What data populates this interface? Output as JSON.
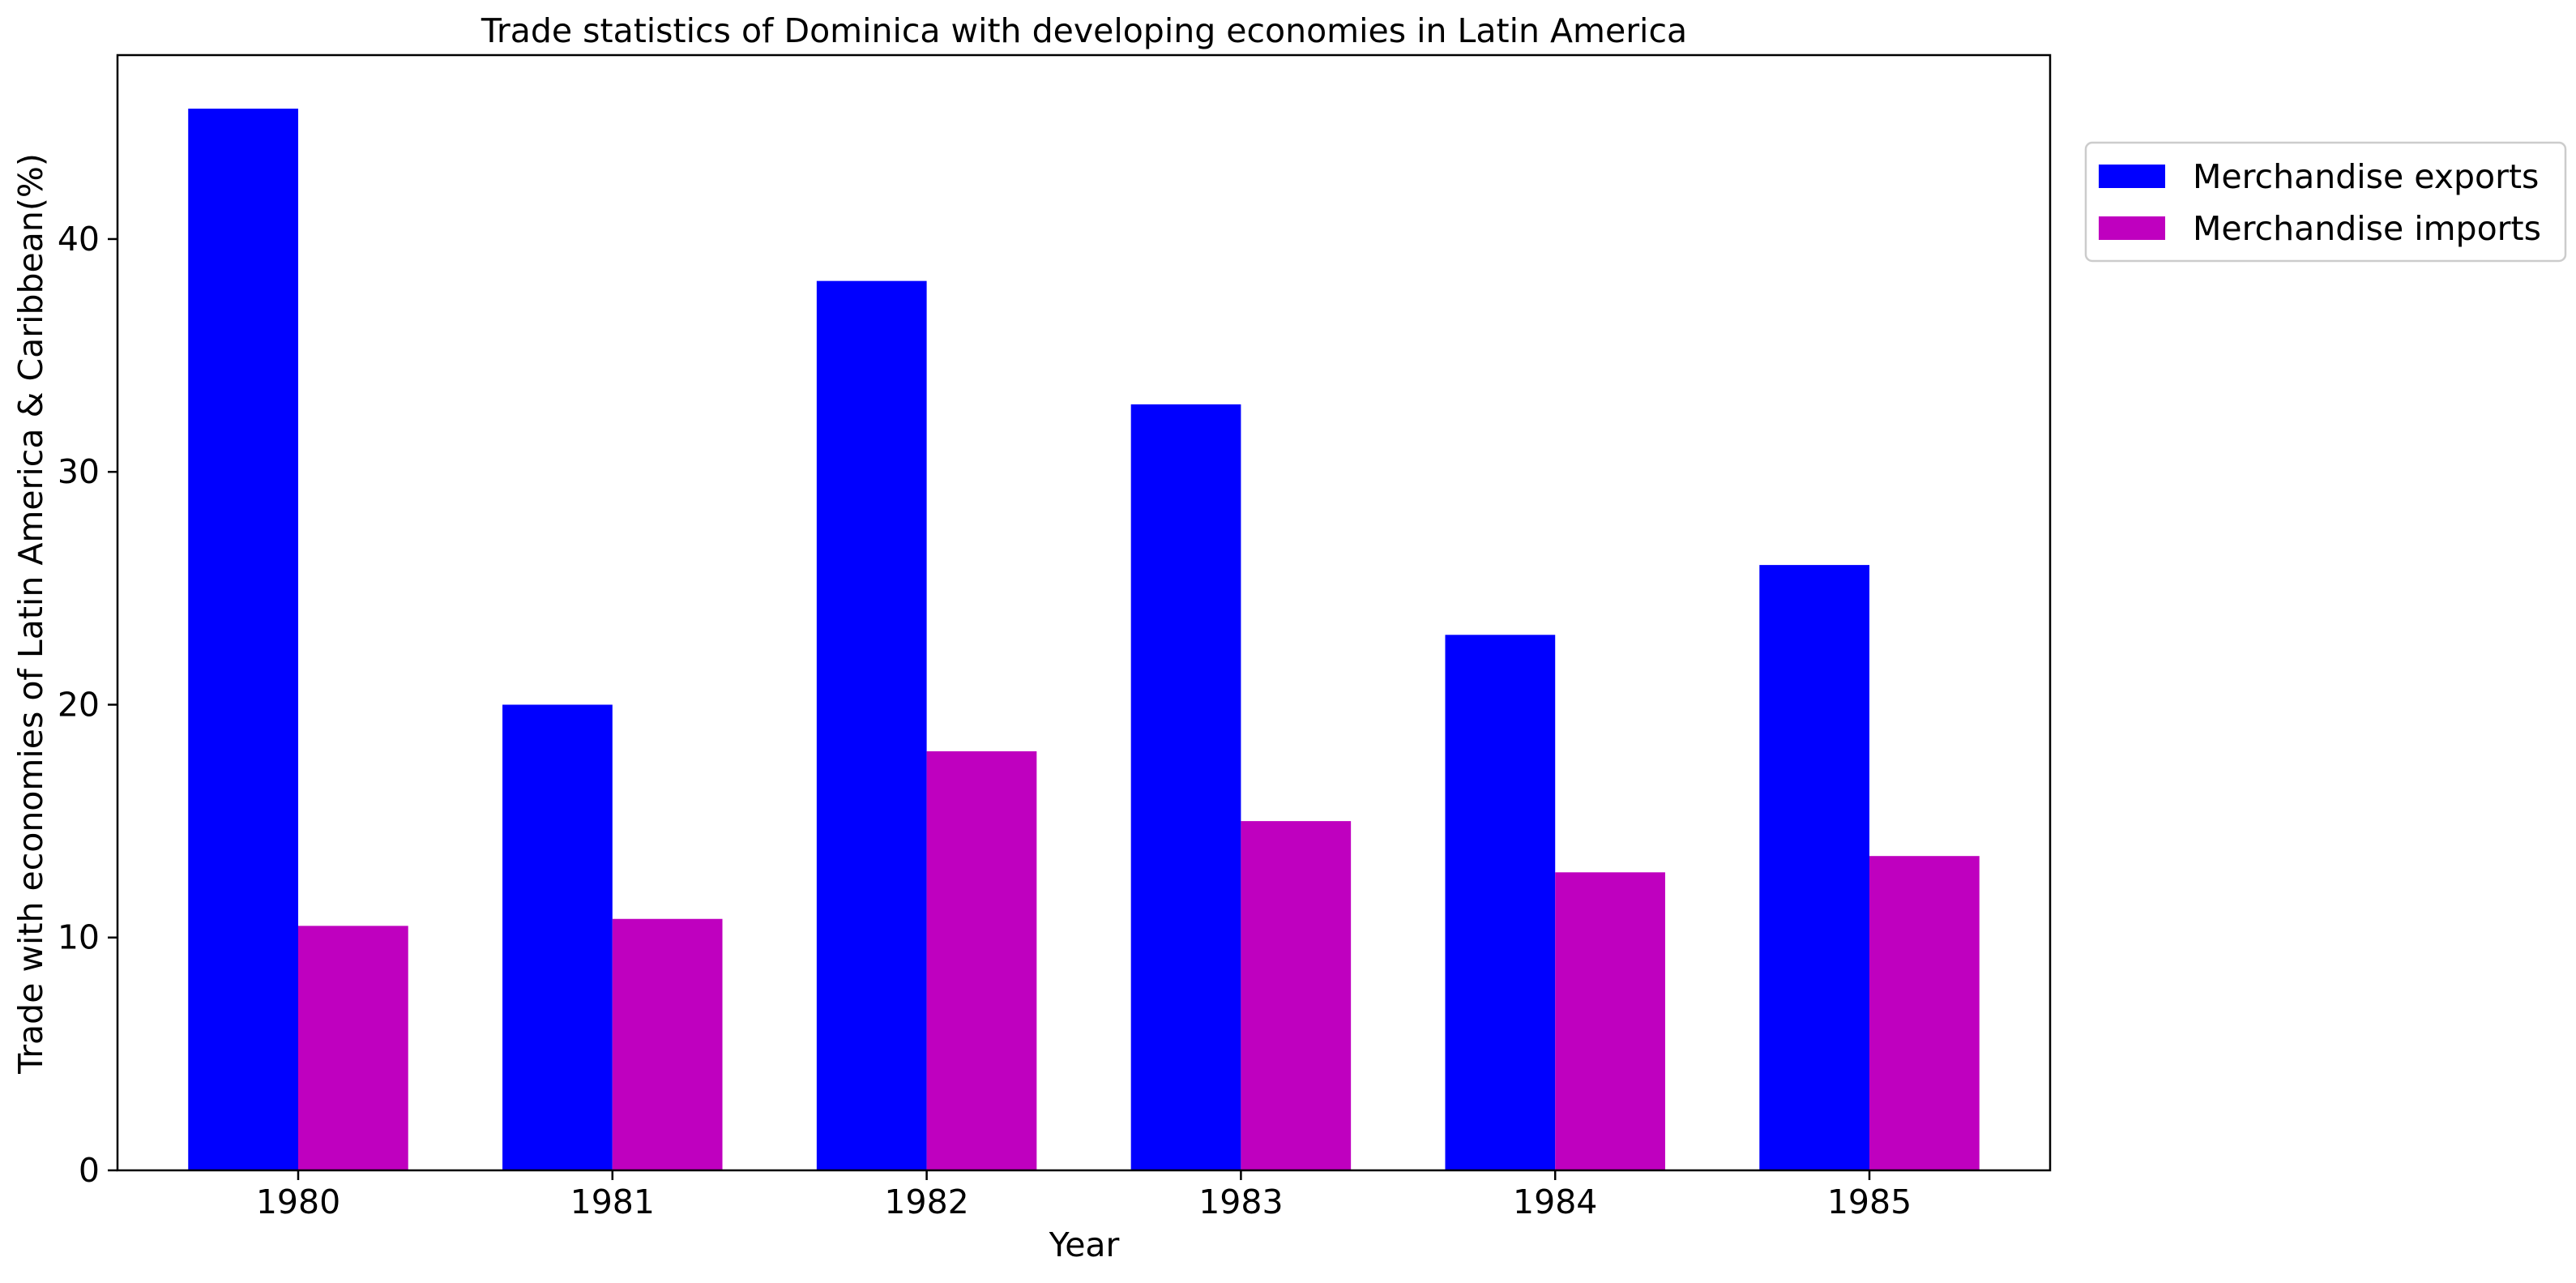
{
  "chart_data": {
    "type": "bar",
    "title": "Trade statistics of Dominica with developing economies in Latin America",
    "xlabel": "Year",
    "ylabel": "Trade with economies of Latin America & Caribbean(%)",
    "categories": [
      "1980",
      "1981",
      "1982",
      "1983",
      "1984",
      "1985"
    ],
    "series": [
      {
        "name": "Merchandise exports",
        "color": "#0000ff",
        "values": [
          45.6,
          20.0,
          38.2,
          32.9,
          23.0,
          26.0
        ]
      },
      {
        "name": "Merchandise imports",
        "color": "#bf00bf",
        "values": [
          10.5,
          10.8,
          18.0,
          15.0,
          12.8,
          13.5
        ]
      }
    ],
    "ylim": [
      0,
      47.9
    ],
    "yticks": [
      0,
      10,
      20,
      30,
      40
    ],
    "grid": false,
    "legend_position": "outside-top-right"
  }
}
